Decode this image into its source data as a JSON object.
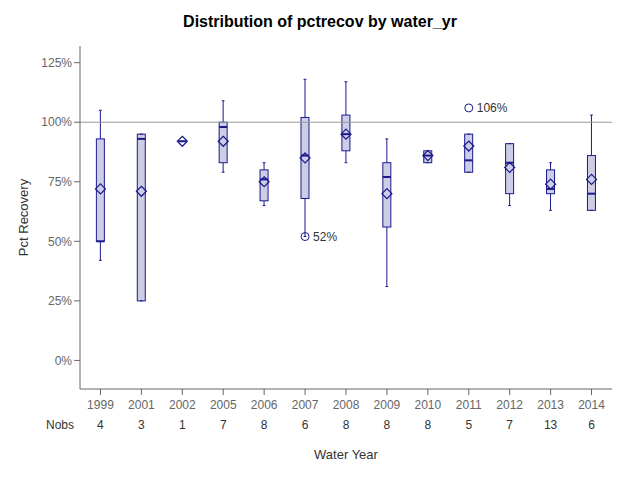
{
  "chart_data": {
    "type": "box",
    "title": "Distribution of pctrecov by water_yr",
    "x_label": "Water Year",
    "y_label": "Pct Recovery",
    "categories": [
      "1999",
      "2001",
      "2002",
      "2005",
      "2006",
      "2007",
      "2008",
      "2009",
      "2010",
      "2011",
      "2012",
      "2013",
      "2014"
    ],
    "nobs_label": "Nobs",
    "nobs": [
      4,
      3,
      1,
      7,
      8,
      6,
      8,
      8,
      8,
      5,
      7,
      13,
      6
    ],
    "boxes": [
      {
        "q1": 50,
        "median": 50,
        "q3": 93,
        "whisker_low": 42,
        "whisker_high": 105,
        "mean": 72,
        "outliers": [],
        "outlier_labels": []
      },
      {
        "q1": 25,
        "median": 93,
        "q3": 95,
        "whisker_low": 25,
        "whisker_high": 95,
        "mean": 71,
        "outliers": [],
        "outlier_labels": []
      },
      {
        "q1": 92,
        "median": 92,
        "q3": 92,
        "whisker_low": 92,
        "whisker_high": 92,
        "mean": 92,
        "outliers": [],
        "outlier_labels": []
      },
      {
        "q1": 83,
        "median": 98,
        "q3": 100,
        "whisker_low": 79,
        "whisker_high": 109,
        "mean": 92,
        "outliers": [],
        "outlier_labels": []
      },
      {
        "q1": 67,
        "median": 76,
        "q3": 80,
        "whisker_low": 65,
        "whisker_high": 83,
        "mean": 75,
        "outliers": [],
        "outlier_labels": []
      },
      {
        "q1": 68,
        "median": 86,
        "q3": 102,
        "whisker_low": 52,
        "whisker_high": 118,
        "mean": 85,
        "outliers": [
          52
        ],
        "outlier_labels": [
          "52%"
        ]
      },
      {
        "q1": 88,
        "median": 95,
        "q3": 103,
        "whisker_low": 83,
        "whisker_high": 117,
        "mean": 95,
        "outliers": [],
        "outlier_labels": []
      },
      {
        "q1": 56,
        "median": 77,
        "q3": 83,
        "whisker_low": 31,
        "whisker_high": 93,
        "mean": 70,
        "outliers": [],
        "outlier_labels": []
      },
      {
        "q1": 83,
        "median": 86,
        "q3": 88,
        "whisker_low": 83,
        "whisker_high": 88,
        "mean": 86,
        "outliers": [],
        "outlier_labels": []
      },
      {
        "q1": 79,
        "median": 84,
        "q3": 95,
        "whisker_low": 79,
        "whisker_high": 95,
        "mean": 90,
        "outliers": [
          106
        ],
        "outlier_labels": [
          "106%"
        ]
      },
      {
        "q1": 70,
        "median": 83,
        "q3": 91,
        "whisker_low": 65,
        "whisker_high": 91,
        "mean": 81,
        "outliers": [],
        "outlier_labels": []
      },
      {
        "q1": 70,
        "median": 72,
        "q3": 80,
        "whisker_low": 63,
        "whisker_high": 83,
        "mean": 74,
        "outliers": [],
        "outlier_labels": []
      },
      {
        "q1": 63,
        "median": 70,
        "q3": 86,
        "whisker_low": 63,
        "whisker_high": 103,
        "mean": 76,
        "outliers": [],
        "outlier_labels": []
      }
    ],
    "color": "#1a1a8c",
    "marker": "diamond",
    "ref_line": {
      "y": 100,
      "color": "#999999"
    },
    "grid": false,
    "ylim": [
      -12,
      132
    ],
    "yticks": [
      {
        "value": 0,
        "label": "0%"
      },
      {
        "value": 25,
        "label": "25%"
      },
      {
        "value": 50,
        "label": "50%"
      },
      {
        "value": 75,
        "label": "75%"
      },
      {
        "value": 100,
        "label": "100%"
      },
      {
        "value": 125,
        "label": "125%"
      }
    ]
  }
}
